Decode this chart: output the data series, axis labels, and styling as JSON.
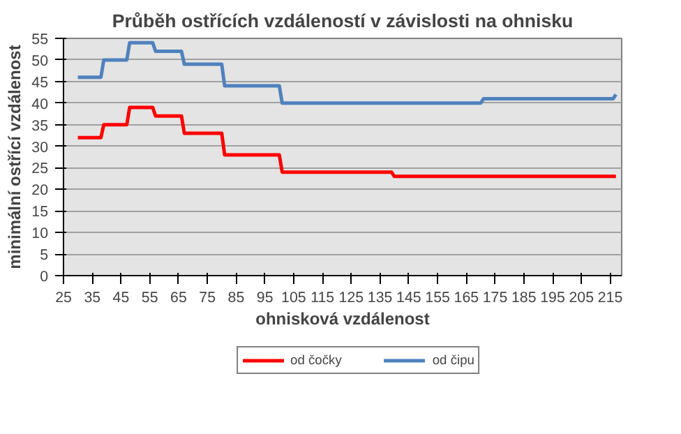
{
  "chart_data": {
    "type": "line",
    "title": "Průběh ostřících vzdáleností v závislosti na ohnisku",
    "xlabel": "ohnisková vzdálenost",
    "ylabel": "minimální ostřící vzdálenost",
    "series": [
      {
        "name": "od čočky",
        "color": "#ff0000",
        "x": [
          30,
          38,
          39,
          47,
          48,
          56,
          57,
          66,
          67,
          80,
          81,
          100,
          101,
          139,
          140,
          217
        ],
        "values": [
          32,
          32,
          35,
          35,
          39,
          39,
          37,
          37,
          33,
          33,
          28,
          28,
          24,
          24,
          23,
          23
        ]
      },
      {
        "name": "od čipu",
        "color": "#4f81bd",
        "x": [
          30,
          38,
          39,
          47,
          48,
          56,
          57,
          66,
          67,
          80,
          81,
          100,
          101,
          170,
          171,
          216,
          217
        ],
        "values": [
          46,
          46,
          50,
          50,
          54,
          54,
          52,
          52,
          49,
          49,
          44,
          44,
          40,
          40,
          41,
          41,
          42
        ]
      }
    ],
    "xlim": [
      25,
      219
    ],
    "xticks": [
      25,
      35,
      45,
      55,
      65,
      75,
      85,
      95,
      105,
      115,
      125,
      135,
      145,
      155,
      165,
      175,
      185,
      195,
      205,
      215
    ],
    "ylim": [
      0,
      55
    ],
    "yticks": [
      0,
      5,
      10,
      15,
      20,
      25,
      30,
      35,
      40,
      45,
      50,
      55
    ],
    "grid": "y",
    "legend": "bottom",
    "marker": "none",
    "line_style": "solid"
  }
}
